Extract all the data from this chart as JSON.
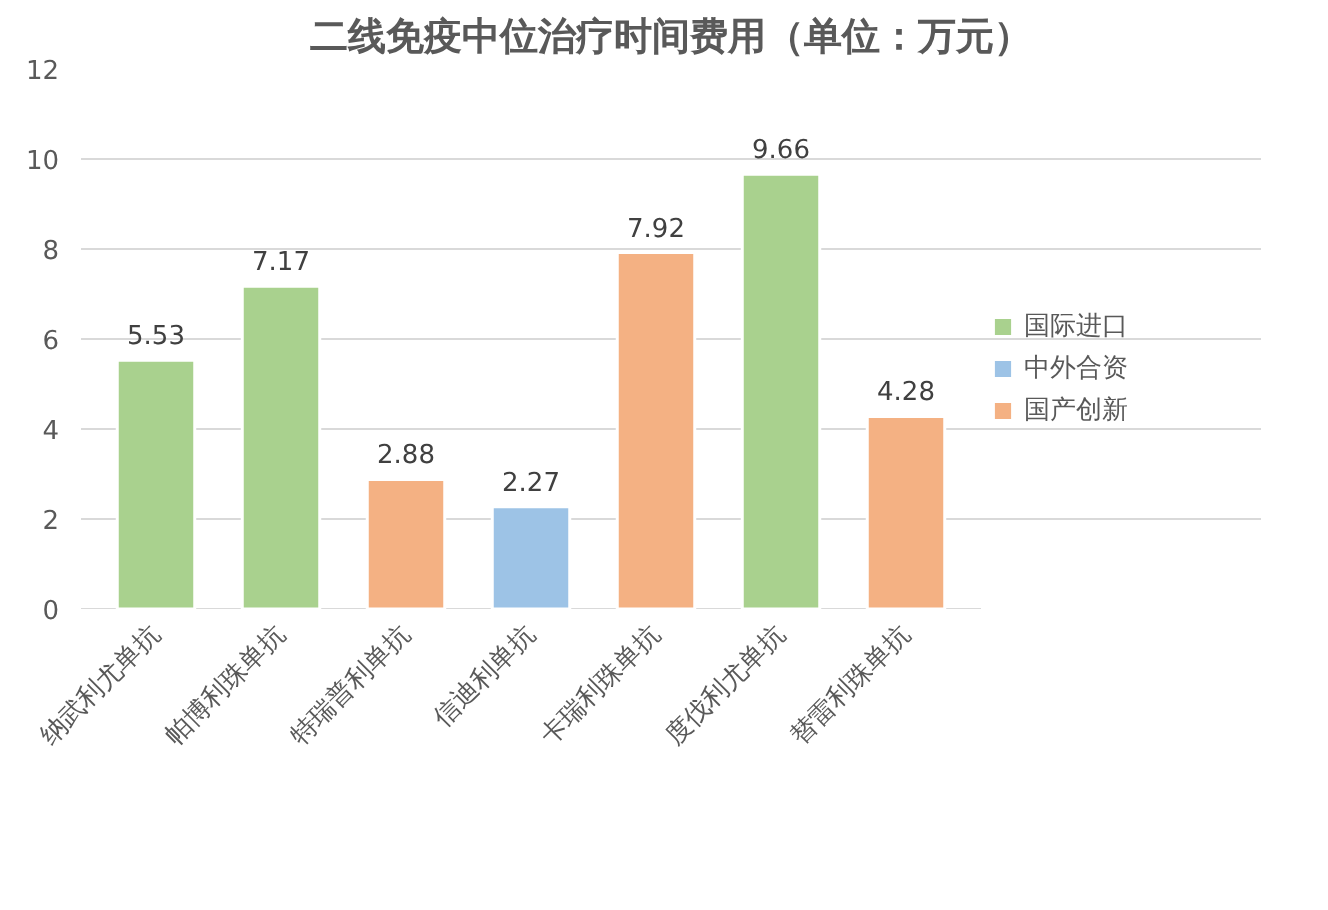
{
  "chart_data": {
    "type": "bar",
    "title": "二线免疫中位治疗时间费用（单位：万元）",
    "categories": [
      "纳武利尤单抗",
      "帕博利珠单抗",
      "特瑞普利单抗",
      "信迪利单抗",
      "卡瑞利珠单抗",
      "度伐利尤单抗",
      "替雷利珠单抗"
    ],
    "series": [
      {
        "name": "国际进口",
        "color": "#a9d18e",
        "values": [
          5.53,
          7.17,
          null,
          null,
          null,
          9.66,
          null
        ]
      },
      {
        "name": "中外合资",
        "color": "#9dc3e6",
        "values": [
          null,
          null,
          null,
          2.27,
          null,
          null,
          null
        ]
      },
      {
        "name": "国产创新",
        "color": "#f4b183",
        "values": [
          null,
          null,
          2.88,
          null,
          7.92,
          null,
          4.28
        ]
      }
    ],
    "ylim": [
      0,
      12
    ],
    "yticks": [
      0,
      2,
      4,
      6,
      8,
      10,
      12
    ],
    "grid": "y",
    "legend": "right",
    "data_labels": true
  }
}
